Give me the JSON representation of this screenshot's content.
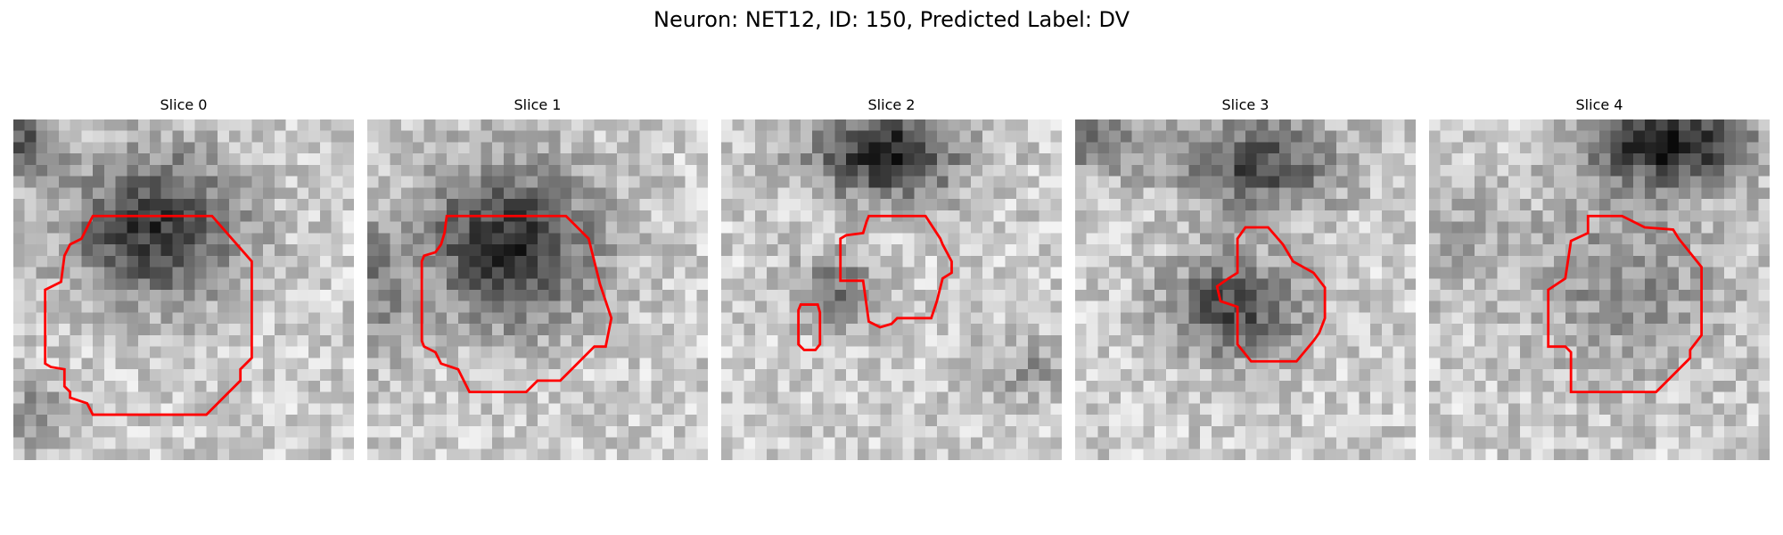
{
  "figure": {
    "title": "Neuron: NET12, ID: 150, Predicted Label: DV"
  },
  "panels": [
    {
      "label": "Slice 0",
      "contour_color": "#ff0000"
    },
    {
      "label": "Slice 1",
      "contour_color": "#ff0000"
    },
    {
      "label": "Slice 2",
      "contour_color": "#ff0000"
    },
    {
      "label": "Slice 3",
      "contour_color": "#ff0000"
    },
    {
      "label": "Slice 4",
      "contour_color": "#ff0000"
    }
  ],
  "colormap": "gray"
}
